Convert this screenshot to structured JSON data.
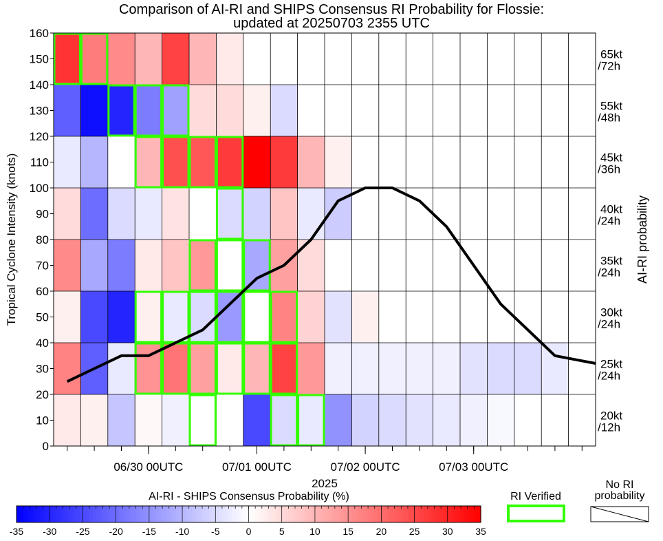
{
  "chart_data": {
    "type": "heatmap",
    "title_line1": "Comparison of AI-RI and SHIPS Consensus RI Probability for Flossie:",
    "title_line2": "updated at 20250703 2355 UTC",
    "ylabel": "Tropical Cyclone Intensity (knots)",
    "ylabel_right": "AI-RI probability",
    "xlabel": "2025",
    "y_ticks": [
      "0",
      "10",
      "20",
      "30",
      "40",
      "50",
      "60",
      "70",
      "80",
      "90",
      "100",
      "110",
      "120",
      "130",
      "140",
      "150",
      "160"
    ],
    "ylim": [
      0,
      160
    ],
    "x_ticks": [
      "06/30 00UTC",
      "07/01 00UTC",
      "07/02 00UTC",
      "07/03 00UTC"
    ],
    "row_labels": [
      {
        "l1": "20kt",
        "l2": "/12h"
      },
      {
        "l1": "25kt",
        "l2": "/24h"
      },
      {
        "l1": "30kt",
        "l2": "/24h"
      },
      {
        "l1": "35kt",
        "l2": "/24h"
      },
      {
        "l1": "40kt",
        "l2": "/24h"
      },
      {
        "l1": "45kt",
        "l2": "/36h"
      },
      {
        "l1": "55kt",
        "l2": "/48h"
      },
      {
        "l1": "65kt",
        "l2": "/72h"
      }
    ],
    "times": [
      "06/29 06UTC",
      "06/29 12UTC",
      "06/29 18UTC",
      "06/30 00UTC",
      "06/30 06UTC",
      "06/30 12UTC",
      "06/30 18UTC",
      "07/01 00UTC",
      "07/01 06UTC",
      "07/01 12UTC",
      "07/01 18UTC",
      "07/02 00UTC",
      "07/02 06UTC",
      "07/02 12UTC",
      "07/02 18UTC",
      "07/03 00UTC",
      "07/03 06UTC",
      "07/03 12UTC",
      "07/03 18UTC",
      "07/04 00UTC"
    ],
    "intensity": [
      25,
      30,
      35,
      35,
      40,
      45,
      55,
      65,
      70,
      80,
      95,
      100,
      100,
      95,
      85,
      70,
      55,
      45,
      35,
      33
    ],
    "ri_differences": [
      [
        3,
        2,
        -8,
        1,
        -2,
        null,
        0,
        -25,
        -5,
        -3,
        -15,
        -6,
        -5,
        -4,
        -3,
        -2,
        -1,
        0,
        0,
        0
      ],
      [
        17,
        -22,
        -3,
        15,
        19,
        13,
        3,
        10,
        26,
        14,
        -2,
        -2,
        -2,
        -2,
        -2,
        -4,
        -5,
        -5,
        -3,
        0
      ],
      [
        2,
        -25,
        -30,
        2,
        -3,
        -5,
        -14,
        0,
        17,
        6,
        -4,
        2,
        0,
        0,
        0,
        0,
        0,
        0,
        0,
        0
      ],
      [
        16,
        -12,
        -18,
        3,
        8,
        14,
        0,
        -12,
        13,
        5,
        0,
        0,
        0,
        0,
        0,
        0,
        0,
        0,
        0,
        0
      ],
      [
        5,
        -20,
        -5,
        -3,
        4,
        0,
        -5,
        -6,
        8,
        -3,
        -7,
        0,
        0,
        0,
        0,
        0,
        0,
        0,
        0,
        0
      ],
      [
        -3,
        -10,
        0,
        10,
        24,
        23,
        27,
        35,
        27,
        10,
        2,
        0,
        0,
        0,
        0,
        0,
        0,
        0,
        0,
        0
      ],
      [
        -22,
        -33,
        -30,
        -18,
        -13,
        5,
        5,
        2,
        -5,
        0,
        0,
        0,
        0,
        0,
        0,
        0,
        0,
        0,
        0,
        0
      ],
      [
        28,
        18,
        16,
        10,
        26,
        10,
        3,
        0,
        0,
        0,
        0,
        0,
        0,
        0,
        0,
        0,
        0,
        0,
        0,
        0
      ]
    ],
    "ri_verified": [
      [
        false,
        false,
        false,
        false,
        false,
        true,
        false,
        false,
        true,
        true,
        false,
        false,
        false,
        false,
        false,
        false,
        false,
        false,
        false,
        false
      ],
      [
        false,
        false,
        false,
        true,
        true,
        true,
        true,
        true,
        true,
        false,
        false,
        false,
        false,
        false,
        false,
        false,
        false,
        false,
        false,
        false
      ],
      [
        false,
        false,
        false,
        true,
        true,
        true,
        true,
        true,
        true,
        false,
        false,
        false,
        false,
        false,
        false,
        false,
        false,
        false,
        false,
        false
      ],
      [
        false,
        false,
        false,
        false,
        false,
        true,
        true,
        true,
        false,
        false,
        false,
        false,
        false,
        false,
        false,
        false,
        false,
        false,
        false,
        false
      ],
      [
        false,
        false,
        false,
        false,
        false,
        false,
        true,
        false,
        false,
        false,
        false,
        false,
        false,
        false,
        false,
        false,
        false,
        false,
        false,
        false
      ],
      [
        false,
        false,
        false,
        true,
        true,
        true,
        true,
        false,
        false,
        false,
        false,
        false,
        false,
        false,
        false,
        false,
        false,
        false,
        false,
        false
      ],
      [
        false,
        false,
        true,
        true,
        true,
        false,
        false,
        false,
        false,
        false,
        false,
        false,
        false,
        false,
        false,
        false,
        false,
        false,
        false,
        false
      ],
      [
        true,
        true,
        false,
        false,
        false,
        false,
        false,
        false,
        false,
        false,
        false,
        false,
        false,
        false,
        false,
        false,
        false,
        false,
        false,
        false
      ]
    ],
    "colorbar": {
      "label": "AI-RI - SHIPS Consensus Probability (%)",
      "ticks": [
        "-35",
        "-30",
        "-25",
        "-20",
        "-15",
        "-10",
        "-5",
        "0",
        "5",
        "10",
        "15",
        "20",
        "25",
        "30",
        "35"
      ],
      "range": [
        -35,
        35
      ],
      "low_color": "#0000ff",
      "mid_color": "#ffffff",
      "high_color": "#ff0000"
    },
    "legend": {
      "verified_label": "RI Verified",
      "verified_color": "#33ff00",
      "no_prob_line1": "No RI",
      "no_prob_line2": "probability"
    },
    "grid": true
  }
}
